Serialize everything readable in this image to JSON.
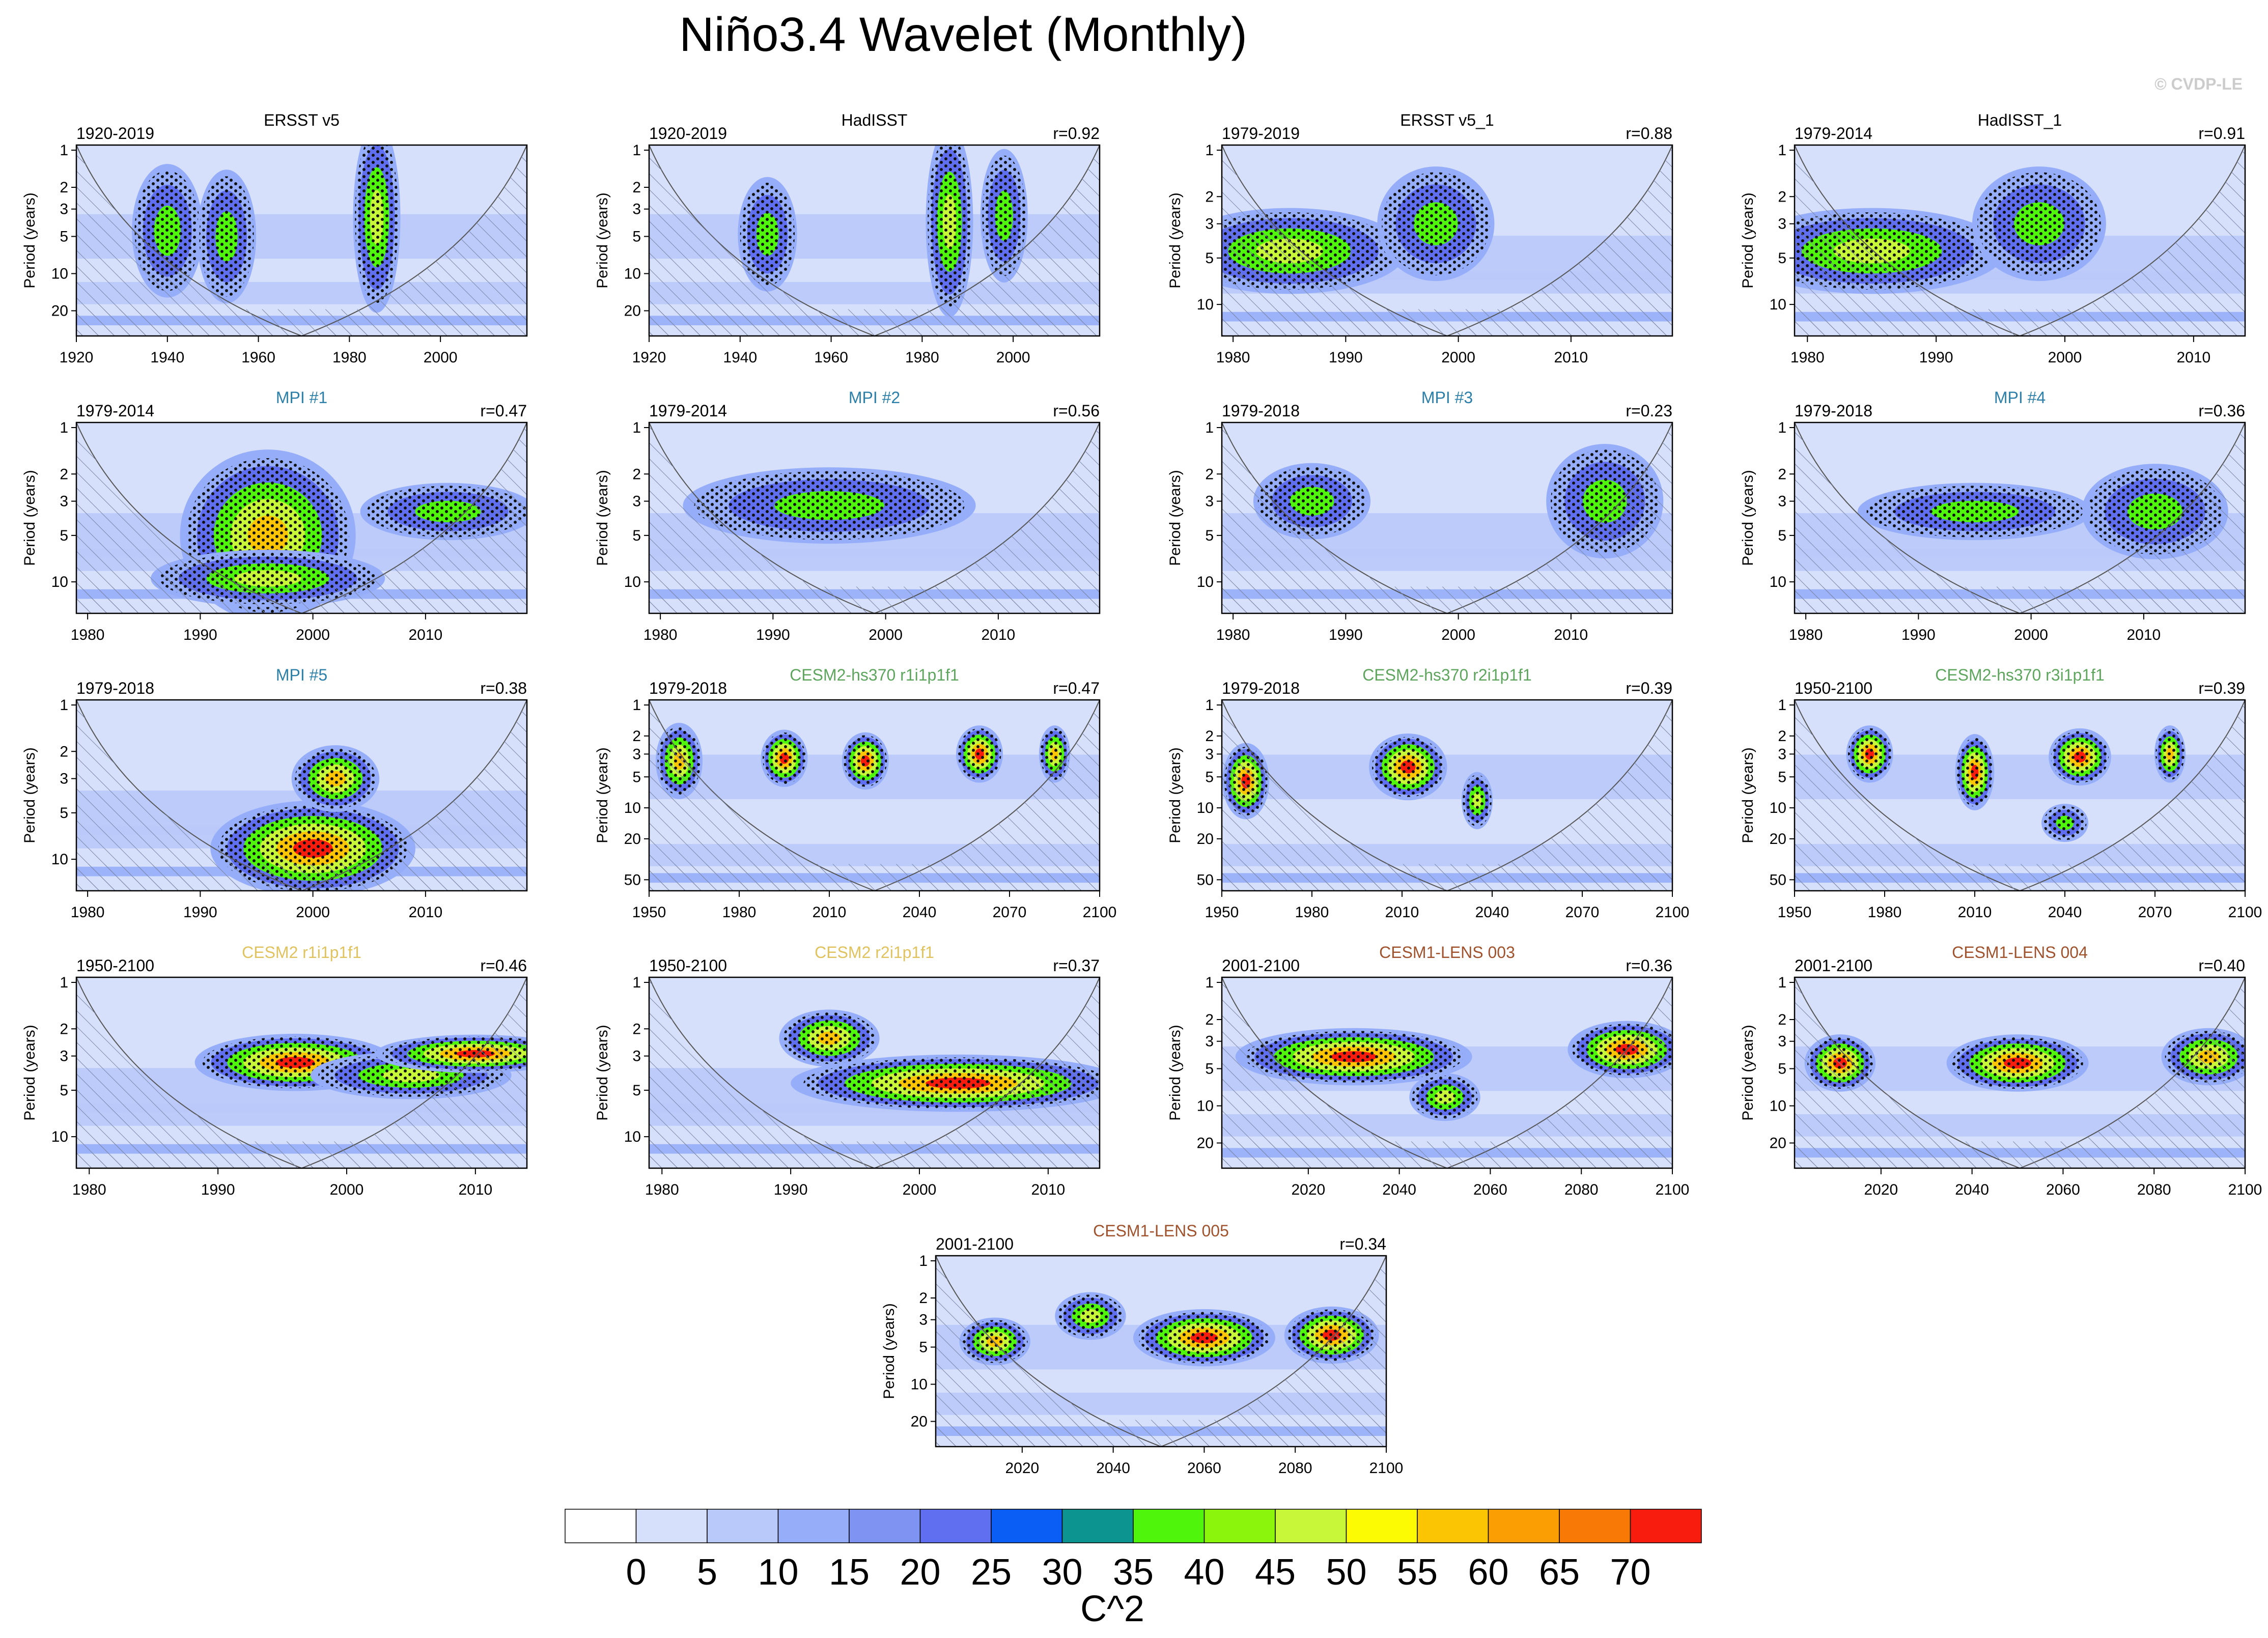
{
  "figure": {
    "title": "Niño3.4 Wavelet (Monthly)",
    "credit": "© CVDP-LE",
    "ylabel": "Period (years)"
  },
  "colorbar": {
    "unit": "C^2",
    "colors": [
      "#ffffff",
      "#d7e0fa",
      "#b9c9f9",
      "#96aefa",
      "#7f93f2",
      "#606ff0",
      "#0a5ef5",
      "#0b9490",
      "#50f50c",
      "#8cf50c",
      "#c8f73a",
      "#fdfb04",
      "#fbc503",
      "#fb9e03",
      "#f97906",
      "#f81c0e"
    ],
    "labels": [
      "0",
      "5",
      "10",
      "15",
      "20",
      "25",
      "30",
      "35",
      "40",
      "45",
      "50",
      "55",
      "60",
      "65",
      "70"
    ]
  },
  "chart_data": [
    {
      "type": "heatmap",
      "name": "ERSST v5",
      "title_color": "#000000",
      "period": "1920-2019",
      "r": "",
      "xlim": [
        1920,
        2019
      ],
      "xticks": [
        "1920",
        "1940",
        "1960",
        "1980",
        "2000"
      ],
      "yticks": [
        "1",
        "2",
        "3",
        "5",
        "10",
        "20"
      ],
      "ymax": 32,
      "hot": [
        [
          1940,
          4.5,
          6,
          0.7,
          2
        ],
        [
          1953,
          5,
          5,
          0.7,
          2
        ],
        [
          1986,
          3.5,
          4,
          1.0,
          3
        ]
      ]
    },
    {
      "type": "heatmap",
      "name": "HadISST",
      "title_color": "#000000",
      "period": "1920-2019",
      "r": "r=0.92",
      "xlim": [
        1920,
        2019
      ],
      "xticks": [
        "1920",
        "1940",
        "1960",
        "1980",
        "2000"
      ],
      "yticks": [
        "1",
        "2",
        "3",
        "5",
        "10",
        "20"
      ],
      "ymax": 32,
      "hot": [
        [
          1946,
          4.8,
          5,
          0.6,
          2
        ],
        [
          1986,
          3.8,
          4,
          1.0,
          3
        ],
        [
          1998,
          3.4,
          4,
          0.7,
          2
        ]
      ]
    },
    {
      "type": "heatmap",
      "name": "ERSST v5_1",
      "title_color": "#000000",
      "period": "1979-2019",
      "r": "r=0.88",
      "xlim": [
        1979,
        2019
      ],
      "xticks": [
        "1980",
        "1990",
        "2000",
        "2010"
      ],
      "yticks": [
        "1",
        "2",
        "3",
        "5",
        "10"
      ],
      "ymax": 16,
      "hot": [
        [
          1985,
          4.5,
          8,
          0.45,
          3
        ],
        [
          1998,
          3.0,
          4,
          0.6,
          2
        ]
      ]
    },
    {
      "type": "heatmap",
      "name": "HadISST_1",
      "title_color": "#000000",
      "period": "1979-2014",
      "r": "r=0.91",
      "xlim": [
        1979,
        2014
      ],
      "xticks": [
        "1980",
        "1990",
        "2000",
        "2010"
      ],
      "yticks": [
        "1",
        "2",
        "3",
        "5",
        "10"
      ],
      "ymax": 16,
      "hot": [
        [
          1985,
          4.5,
          8,
          0.45,
          3
        ],
        [
          1998,
          3.0,
          4,
          0.6,
          2
        ]
      ]
    },
    {
      "type": "heatmap",
      "name": "MPI #1",
      "title_color": "#2b7fa8",
      "period": "1979-2014",
      "r": "r=0.47",
      "xlim": [
        1979,
        2019
      ],
      "xticks": [
        "1980",
        "1990",
        "2000",
        "2010"
      ],
      "yticks": [
        "1",
        "2",
        "3",
        "5",
        "10"
      ],
      "ymax": 16,
      "hot": [
        [
          1996,
          5.0,
          6,
          0.9,
          4
        ],
        [
          1996,
          9.5,
          8,
          0.3,
          3
        ],
        [
          2012,
          3.5,
          6,
          0.3,
          2
        ]
      ]
    },
    {
      "type": "heatmap",
      "name": "MPI #2",
      "title_color": "#2b7fa8",
      "period": "1979-2014",
      "r": "r=0.56",
      "xlim": [
        1979,
        2019
      ],
      "xticks": [
        "1980",
        "1990",
        "2000",
        "2010"
      ],
      "yticks": [
        "1",
        "2",
        "3",
        "5",
        "10"
      ],
      "ymax": 16,
      "hot": [
        [
          1995,
          3.2,
          10,
          0.4,
          2
        ]
      ]
    },
    {
      "type": "heatmap",
      "name": "MPI #3",
      "title_color": "#2b7fa8",
      "period": "1979-2018",
      "r": "r=0.23",
      "xlim": [
        1979,
        2019
      ],
      "xticks": [
        "1980",
        "1990",
        "2000",
        "2010"
      ],
      "yticks": [
        "1",
        "2",
        "3",
        "5",
        "10"
      ],
      "ymax": 16,
      "hot": [
        [
          2013,
          3.0,
          4,
          0.6,
          2
        ],
        [
          1987,
          3.0,
          4,
          0.4,
          2
        ]
      ]
    },
    {
      "type": "heatmap",
      "name": "MPI #4",
      "title_color": "#2b7fa8",
      "period": "1979-2018",
      "r": "r=0.36",
      "xlim": [
        1979,
        2019
      ],
      "xticks": [
        "1980",
        "1990",
        "2000",
        "2010"
      ],
      "yticks": [
        "1",
        "2",
        "3",
        "5",
        "10"
      ],
      "ymax": 16,
      "hot": [
        [
          2011,
          3.5,
          5,
          0.5,
          2
        ],
        [
          1995,
          3.5,
          8,
          0.3,
          2
        ]
      ]
    },
    {
      "type": "heatmap",
      "name": "MPI #5",
      "title_color": "#2b7fa8",
      "period": "1979-2018",
      "r": "r=0.38",
      "xlim": [
        1979,
        2019
      ],
      "xticks": [
        "1980",
        "1990",
        "2000",
        "2010"
      ],
      "yticks": [
        "1",
        "2",
        "3",
        "5",
        "10"
      ],
      "ymax": 16,
      "hot": [
        [
          2000,
          8.5,
          7,
          0.5,
          5
        ],
        [
          2002,
          3.0,
          3,
          0.35,
          4
        ]
      ]
    },
    {
      "type": "heatmap",
      "name": "CESM2-hs370 r1i1p1f1",
      "title_color": "#5ea55e",
      "period": "1979-2018",
      "r": "r=0.47",
      "xlim": [
        1950,
        2100
      ],
      "xticks": [
        "1950",
        "1980",
        "2010",
        "2040",
        "2070",
        "2100"
      ],
      "yticks": [
        "1",
        "2",
        "3",
        "5",
        "10",
        "20",
        "50"
      ],
      "ymax": 64,
      "hot": [
        [
          1960,
          3.5,
          6,
          0.4,
          4
        ],
        [
          1995,
          3.3,
          6,
          0.3,
          5
        ],
        [
          2022,
          3.5,
          6,
          0.3,
          5
        ],
        [
          2060,
          3.0,
          6,
          0.3,
          5
        ],
        [
          2085,
          3.0,
          4,
          0.3,
          4
        ]
      ]
    },
    {
      "type": "heatmap",
      "name": "CESM2-hs370 r2i1p1f1",
      "title_color": "#5ea55e",
      "period": "1979-2018",
      "r": "r=0.39",
      "xlim": [
        1950,
        2100
      ],
      "xticks": [
        "1950",
        "1980",
        "2010",
        "2040",
        "2070",
        "2100"
      ],
      "yticks": [
        "1",
        "2",
        "3",
        "5",
        "10",
        "20",
        "50"
      ],
      "ymax": 64,
      "hot": [
        [
          1958,
          5.5,
          6,
          0.4,
          5
        ],
        [
          2012,
          4.0,
          10,
          0.35,
          5
        ],
        [
          2035,
          8.5,
          4,
          0.3,
          3
        ]
      ]
    },
    {
      "type": "heatmap",
      "name": "CESM2-hs370 r3i1p1f1",
      "title_color": "#5ea55e",
      "period": "1950-2100",
      "r": "r=0.39",
      "xlim": [
        1950,
        2100
      ],
      "xticks": [
        "1950",
        "1980",
        "2010",
        "2040",
        "2070",
        "2100"
      ],
      "yticks": [
        "1",
        "2",
        "3",
        "5",
        "10",
        "20",
        "50"
      ],
      "ymax": 64,
      "hot": [
        [
          1975,
          3.0,
          6,
          0.3,
          5
        ],
        [
          2010,
          4.5,
          5,
          0.4,
          5
        ],
        [
          2045,
          3.2,
          8,
          0.3,
          5
        ],
        [
          2075,
          3.0,
          4,
          0.3,
          4
        ],
        [
          2040,
          14.0,
          6,
          0.2,
          2
        ]
      ]
    },
    {
      "type": "heatmap",
      "name": "CESM2 r1i1p1f1",
      "title_color": "#e0c25e",
      "period": "1950-2100",
      "r": "r=0.46",
      "xlim": [
        1979,
        2014
      ],
      "xticks": [
        "1980",
        "1990",
        "2000",
        "2010"
      ],
      "yticks": [
        "1",
        "2",
        "3",
        "5",
        "10"
      ],
      "ymax": 16,
      "hot": [
        [
          1996,
          3.3,
          6,
          0.3,
          5
        ],
        [
          2005,
          4.0,
          6,
          0.25,
          3
        ],
        [
          2010,
          2.9,
          6,
          0.2,
          5
        ]
      ]
    },
    {
      "type": "heatmap",
      "name": "CESM2 r2i1p1f1",
      "title_color": "#e0c25e",
      "period": "1950-2100",
      "r": "r=0.37",
      "xlim": [
        1979,
        2014
      ],
      "xticks": [
        "1980",
        "1990",
        "2000",
        "2010"
      ],
      "yticks": [
        "1",
        "2",
        "3",
        "5",
        "10"
      ],
      "ymax": 16,
      "hot": [
        [
          2003,
          4.5,
          10,
          0.3,
          5
        ],
        [
          1993,
          2.3,
          3,
          0.3,
          4
        ]
      ]
    },
    {
      "type": "heatmap",
      "name": "CESM1-LENS 003",
      "title_color": "#a0522d",
      "period": "2001-2100",
      "r": "r=0.36",
      "xlim": [
        2001,
        2100
      ],
      "xticks": [
        "2020",
        "2040",
        "2060",
        "2080",
        "2100"
      ],
      "yticks": [
        "1",
        "2",
        "3",
        "5",
        "10",
        "20"
      ],
      "ymax": 32,
      "hot": [
        [
          2030,
          4.0,
          20,
          0.3,
          5
        ],
        [
          2090,
          3.5,
          10,
          0.3,
          5
        ],
        [
          2050,
          8.5,
          6,
          0.25,
          3
        ]
      ]
    },
    {
      "type": "heatmap",
      "name": "CESM1-LENS 004",
      "title_color": "#a0522d",
      "period": "2001-2100",
      "r": "r=0.40",
      "xlim": [
        2001,
        2100
      ],
      "xticks": [
        "2020",
        "2040",
        "2060",
        "2080",
        "2100"
      ],
      "yticks": [
        "1",
        "2",
        "3",
        "5",
        "10",
        "20"
      ],
      "ymax": 32,
      "hot": [
        [
          2011,
          4.5,
          6,
          0.3,
          5
        ],
        [
          2050,
          4.5,
          12,
          0.3,
          5
        ],
        [
          2092,
          4.0,
          8,
          0.3,
          4
        ]
      ]
    },
    {
      "type": "heatmap",
      "name": "CESM1-LENS 005",
      "title_color": "#a0522d",
      "period": "2001-2100",
      "r": "r=0.34",
      "xlim": [
        2001,
        2100
      ],
      "xticks": [
        "2020",
        "2040",
        "2060",
        "2080",
        "2100"
      ],
      "yticks": [
        "1",
        "2",
        "3",
        "5",
        "10",
        "20"
      ],
      "ymax": 32,
      "hot": [
        [
          2014,
          4.5,
          6,
          0.25,
          4
        ],
        [
          2060,
          4.2,
          12,
          0.3,
          5
        ],
        [
          2088,
          4.0,
          8,
          0.3,
          5
        ],
        [
          2035,
          2.8,
          6,
          0.25,
          3
        ]
      ]
    }
  ]
}
